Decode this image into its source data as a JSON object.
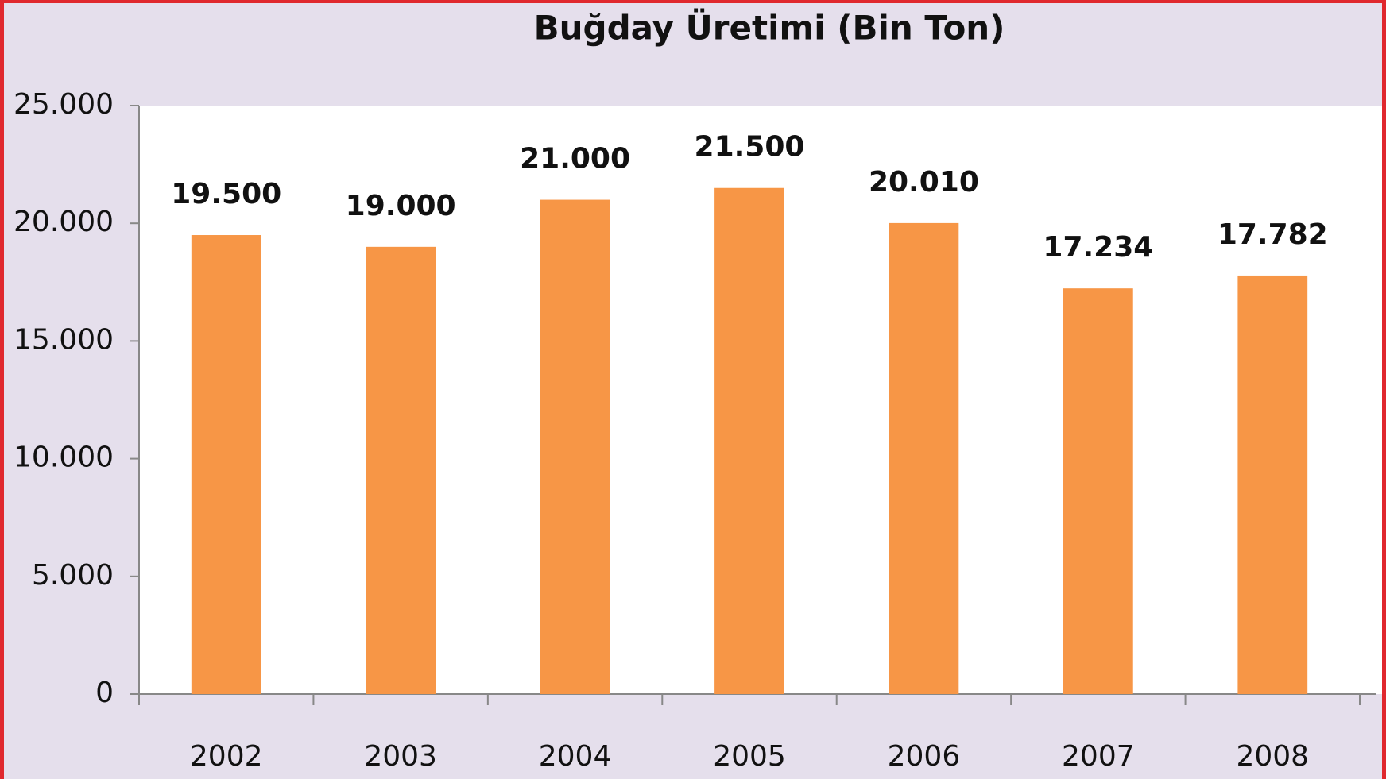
{
  "chart_data": {
    "type": "bar",
    "title": "Buğday Üretimi (Bin Ton)",
    "categories": [
      "2002",
      "2003",
      "2004",
      "2005",
      "2006",
      "2007",
      "2008"
    ],
    "values": [
      19500,
      19000,
      21000,
      21500,
      20010,
      17234,
      17782
    ],
    "value_labels": [
      "19.500",
      "19.000",
      "21.000",
      "21.500",
      "20.010",
      "17.234",
      "17.782"
    ],
    "color": "#f79646",
    "ylim": [
      0,
      25000
    ],
    "yticks": [
      0,
      {
        "value": 5000,
        "label": "5.000"
      },
      {
        "value": 10000,
        "label": "10.000"
      },
      {
        "value": 15000,
        "label": "15.000"
      },
      {
        "value": 20000,
        "label": "20.000"
      },
      {
        "value": 25000,
        "label": "25.000"
      }
    ],
    "grid": false
  }
}
